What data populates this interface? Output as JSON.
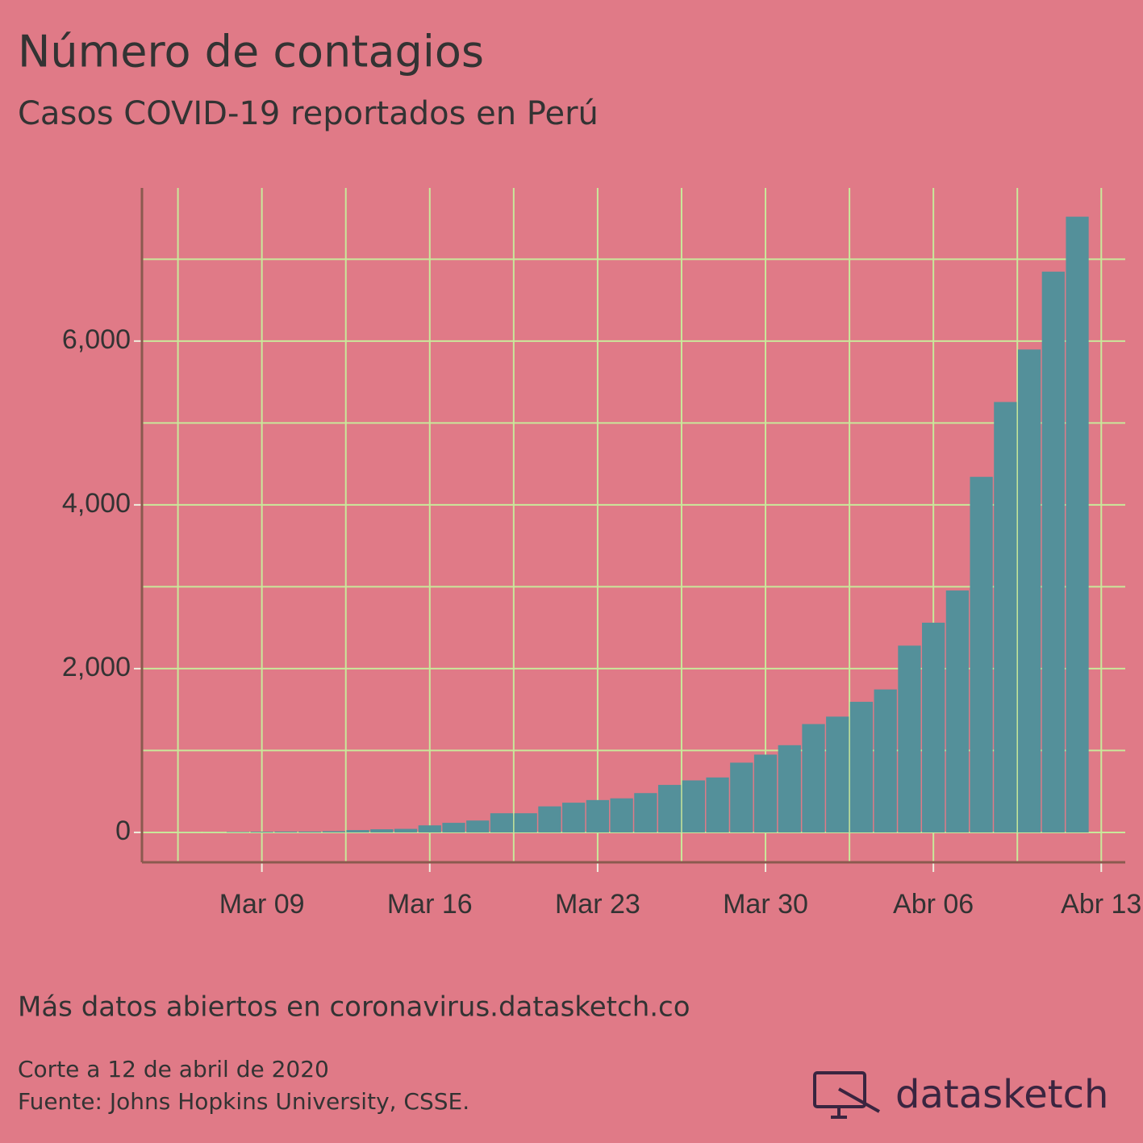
{
  "chart_data": {
    "type": "bar",
    "title": "Número de contagios",
    "subtitle": "Casos COVID-19 reportados en Perú",
    "x": [
      "Mar 06",
      "Mar 07",
      "Mar 08",
      "Mar 09",
      "Mar 10",
      "Mar 11",
      "Mar 12",
      "Mar 13",
      "Mar 14",
      "Mar 15",
      "Mar 16",
      "Mar 17",
      "Mar 18",
      "Mar 19",
      "Mar 20",
      "Mar 21",
      "Mar 22",
      "Mar 23",
      "Mar 24",
      "Mar 25",
      "Mar 26",
      "Mar 27",
      "Mar 28",
      "Mar 29",
      "Mar 30",
      "Mar 31",
      "Abr 01",
      "Abr 02",
      "Abr 03",
      "Abr 04",
      "Abr 05",
      "Abr 06",
      "Abr 07",
      "Abr 08",
      "Abr 09",
      "Abr 10",
      "Abr 11",
      "Abr 12"
    ],
    "values": [
      1,
      1,
      6,
      9,
      11,
      11,
      15,
      28,
      38,
      43,
      86,
      117,
      145,
      234,
      234,
      318,
      363,
      395,
      416,
      480,
      580,
      635,
      671,
      852,
      950,
      1065,
      1323,
      1414,
      1595,
      1746,
      2281,
      2561,
      2954,
      4342,
      5256,
      5897,
      6848,
      7519
    ],
    "color": "#54909a",
    "xlim": [
      "Mar 04",
      "Abr 14"
    ],
    "xticks": [
      "Mar 09",
      "Mar 16",
      "Mar 23",
      "Mar 30",
      "Abr 06",
      "Abr 13"
    ],
    "ylim": [
      -365,
      7870
    ],
    "yticks": [
      {
        "value": 0,
        "label": "0"
      },
      {
        "value": 2000,
        "label": "2,000"
      },
      {
        "value": 4000,
        "label": "4,000"
      },
      {
        "value": 6000,
        "label": "6,000"
      }
    ],
    "y_minor_ticks": [
      1000,
      3000,
      5000,
      7000
    ],
    "grid": true,
    "caption": "Más datos abiertos en coronavirus.datasketch.co",
    "note": "Corte a 12 de abril de 2020",
    "source": "Fuente: Johns Hopkins University, CSSE.",
    "brand": "datasketch"
  }
}
